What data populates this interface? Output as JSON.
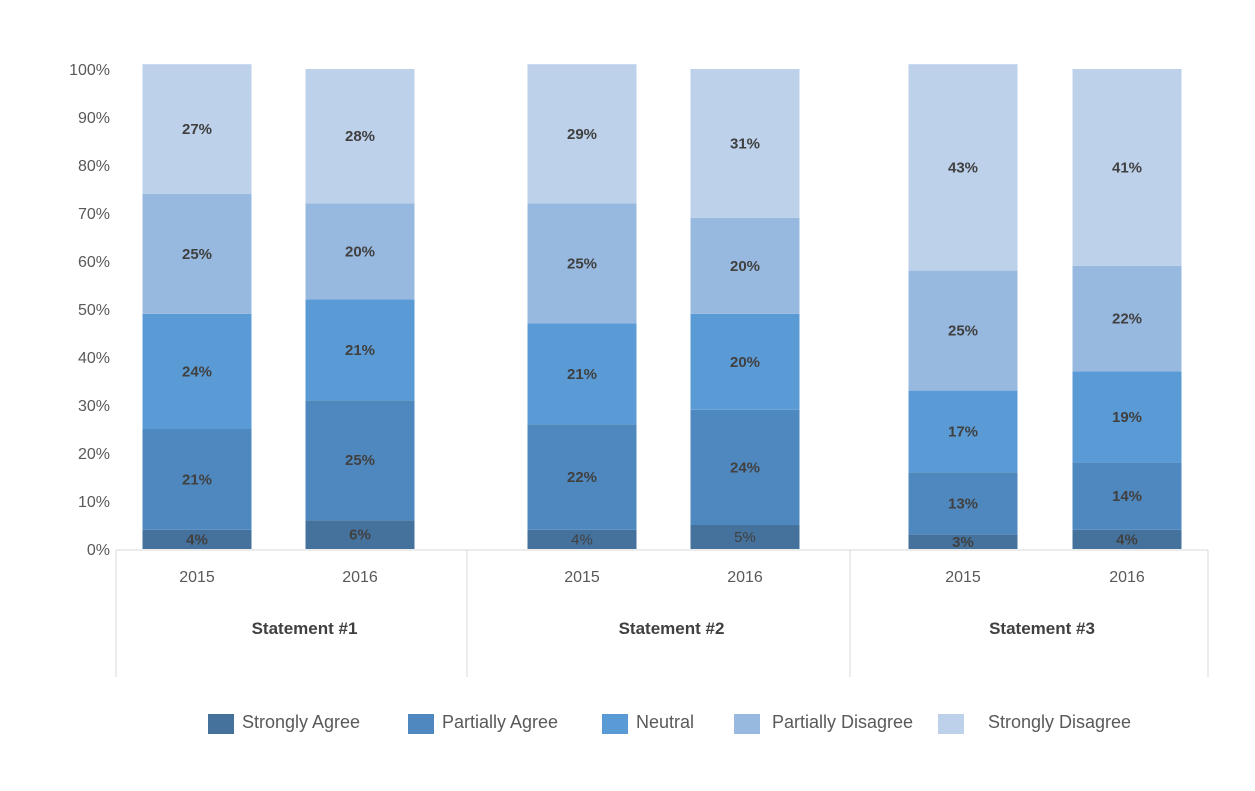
{
  "chart_data": {
    "type": "bar",
    "stacked": true,
    "ylim": [
      0,
      100
    ],
    "yticks": [
      "0%",
      "10%",
      "20%",
      "30%",
      "40%",
      "50%",
      "60%",
      "70%",
      "80%",
      "90%",
      "100%"
    ],
    "groups": [
      {
        "name": "Statement #1",
        "categories": [
          "2015",
          "2016"
        ]
      },
      {
        "name": "Statement #2",
        "categories": [
          "2015",
          "2016"
        ]
      },
      {
        "name": "Statement #3",
        "categories": [
          "2015",
          "2016"
        ]
      }
    ],
    "series": [
      {
        "name": "Strongly Agree",
        "color": "#44729d",
        "values": [
          4,
          6,
          4,
          5,
          3,
          4
        ],
        "labels": [
          "4%",
          "6%",
          "4%",
          "5%",
          "3%",
          "4%"
        ],
        "bold": [
          true,
          true,
          false,
          false,
          true,
          true
        ]
      },
      {
        "name": "Partially Agree",
        "color": "#4f88be",
        "values": [
          21,
          25,
          22,
          24,
          13,
          14
        ],
        "labels": [
          "21%",
          "25%",
          "22%",
          "24%",
          "13%",
          "14%"
        ],
        "bold": [
          true,
          true,
          true,
          true,
          true,
          true
        ]
      },
      {
        "name": "Neutral",
        "color": "#5b9bd5",
        "values": [
          24,
          21,
          21,
          20,
          17,
          19
        ],
        "labels": [
          "24%",
          "21%",
          "21%",
          "20%",
          "17%",
          "19%"
        ],
        "bold": [
          true,
          true,
          true,
          true,
          true,
          true
        ]
      },
      {
        "name": "Partially Disagree",
        "color": "#97b8df",
        "values": [
          25,
          20,
          25,
          20,
          25,
          22
        ],
        "labels": [
          "25%",
          "20%",
          "25%",
          "20%",
          "25%",
          "22%"
        ],
        "bold": [
          true,
          true,
          true,
          true,
          true,
          true
        ]
      },
      {
        "name": "Strongly Disagree",
        "color": "#bdd1ea",
        "values": [
          27,
          28,
          29,
          31,
          43,
          41
        ],
        "labels": [
          "27%",
          "28%",
          "29%",
          "31%",
          "43%",
          "41%"
        ],
        "bold": [
          true,
          true,
          true,
          true,
          true,
          true
        ]
      }
    ],
    "legend": "bottom"
  }
}
